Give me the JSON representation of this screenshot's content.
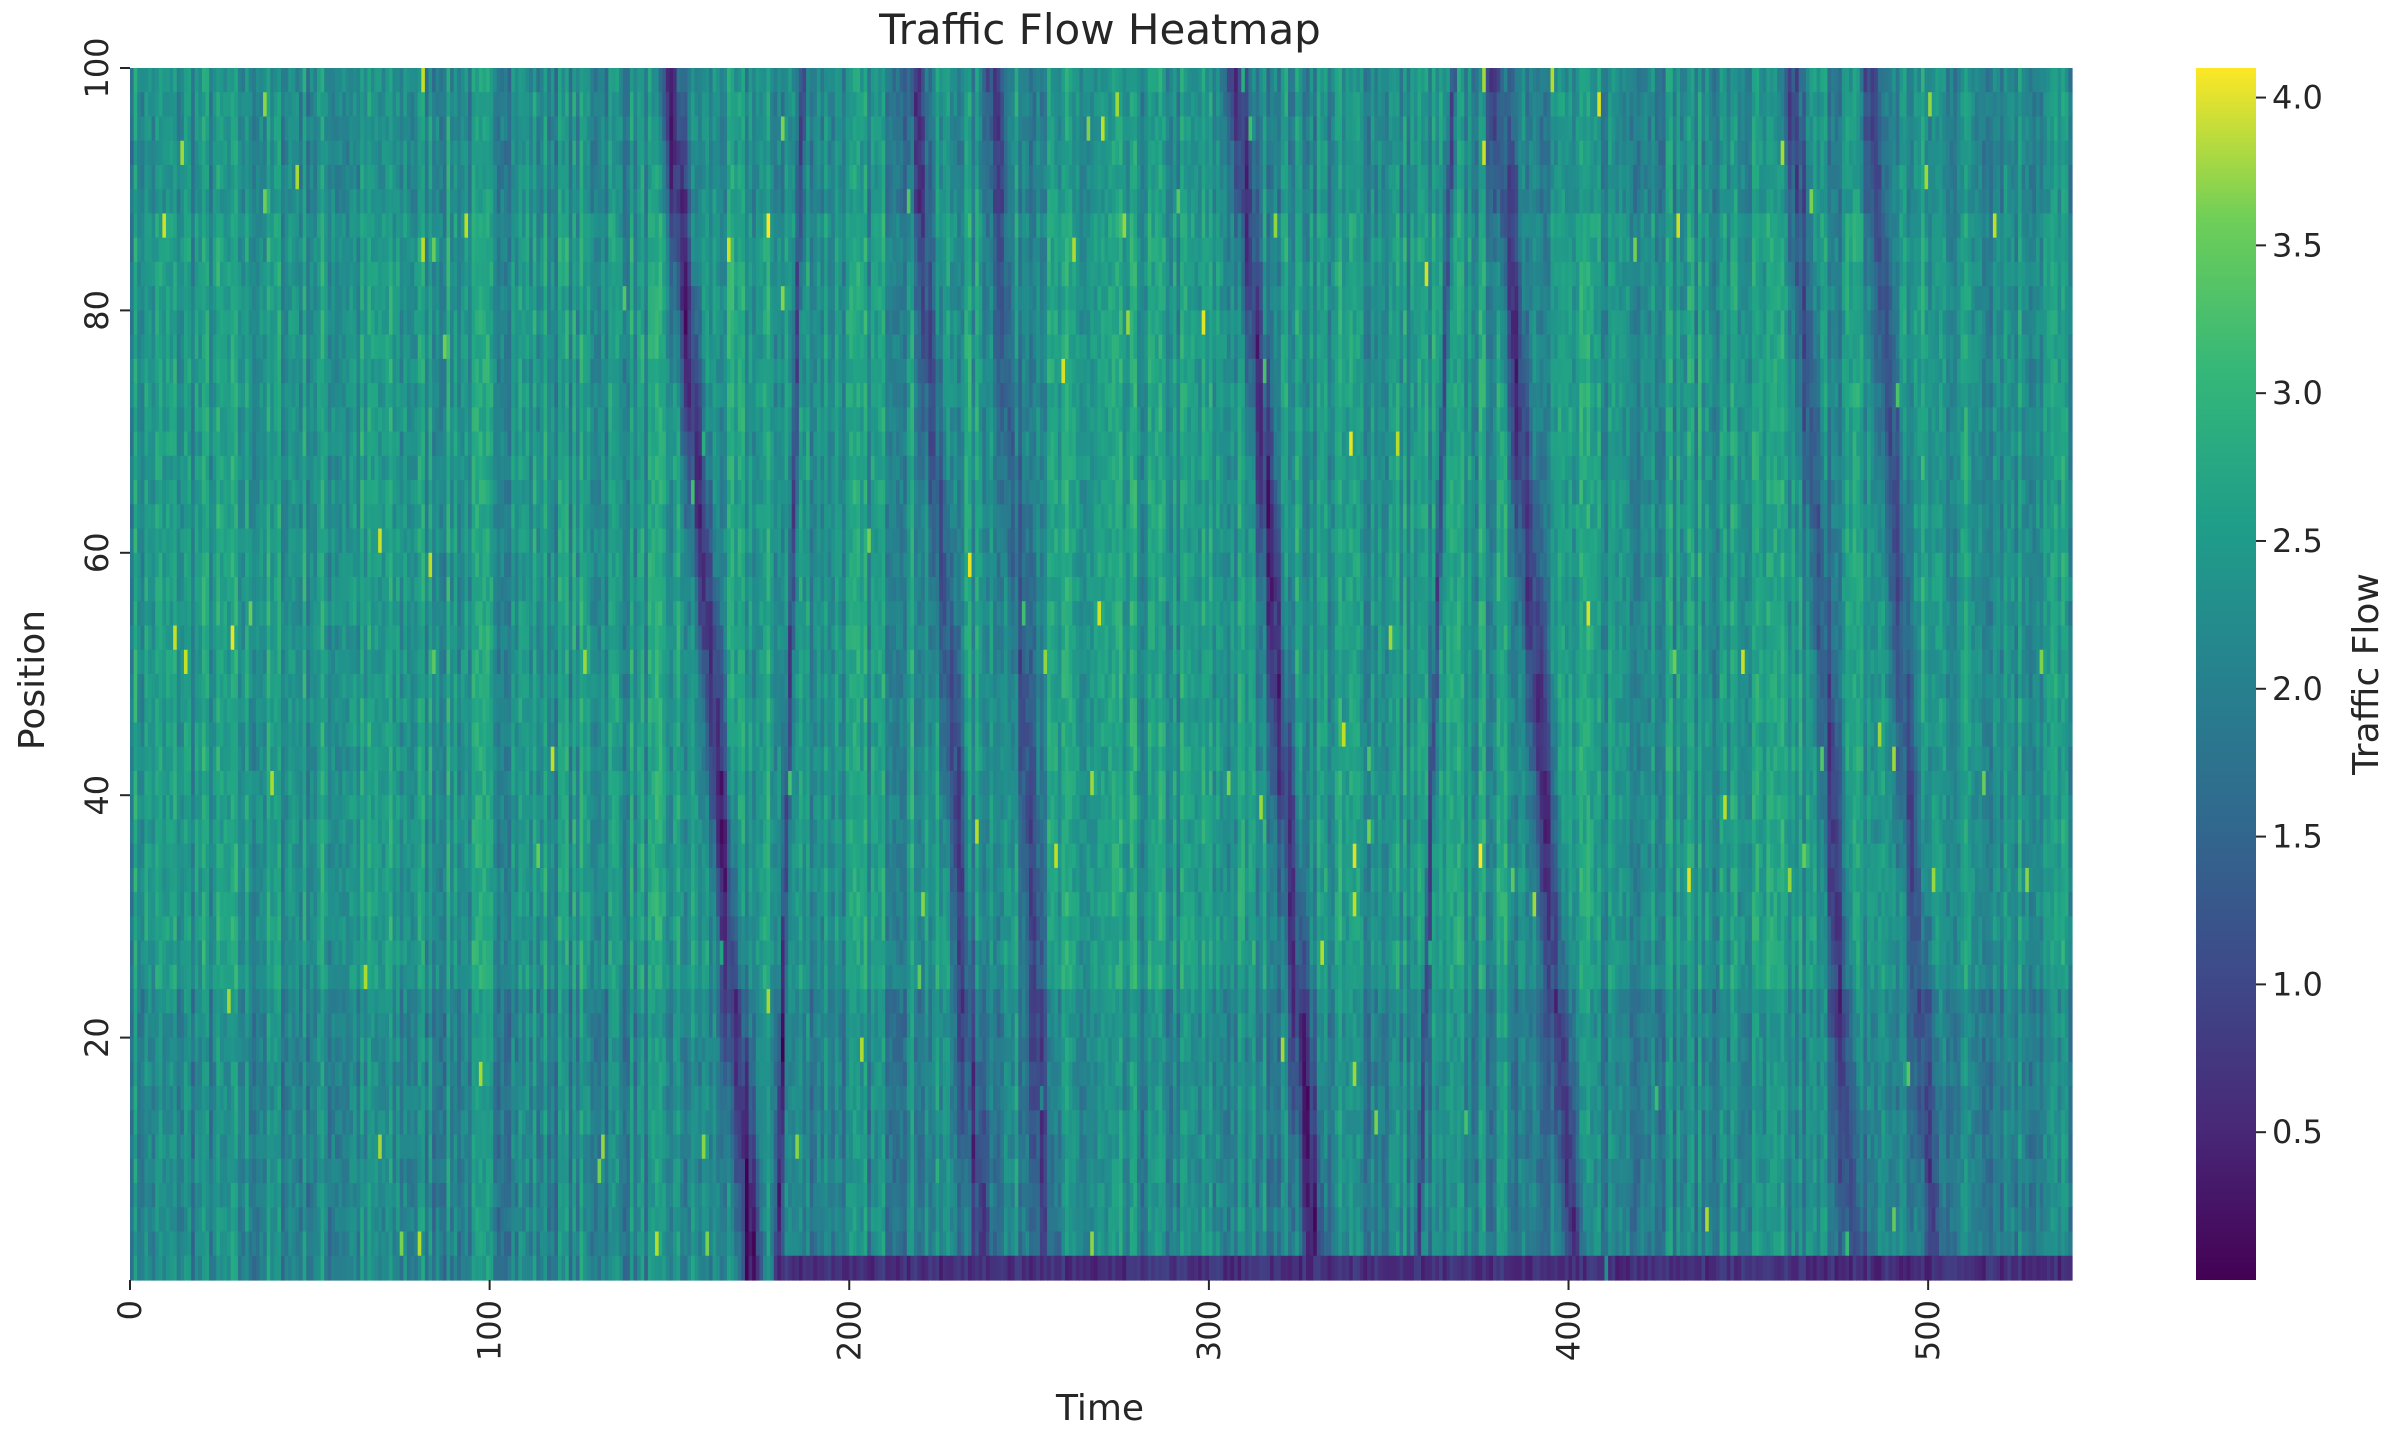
{
  "chart_data": {
    "type": "heatmap",
    "title": "Traffic Flow Heatmap",
    "xlabel": "Time",
    "ylabel": "Position",
    "colorbar_label": "Traffic Flow",
    "colormap": "viridis",
    "xlim": [
      0,
      540
    ],
    "ylim": [
      0,
      100
    ],
    "value_range": [
      0.0,
      4.1
    ],
    "x_ticks": [
      0,
      100,
      200,
      300,
      400,
      500
    ],
    "x_tick_labels": [
      "0",
      "100",
      "200",
      "300",
      "400",
      "500"
    ],
    "y_ticks": [
      20,
      40,
      60,
      80,
      100
    ],
    "y_tick_labels": [
      "20",
      "40",
      "60",
      "80",
      "100"
    ],
    "colorbar_ticks": [
      0.5,
      1.0,
      1.5,
      2.0,
      2.5,
      3.0,
      3.5,
      4.0
    ],
    "colorbar_tick_labels": [
      "0.5",
      "1.0",
      "1.5",
      "2.0",
      "2.5",
      "3.0",
      "3.5",
      "4.0"
    ],
    "base_flow": 2.15,
    "jam_waves": [
      {
        "t_top": 150,
        "t_bottom": 173,
        "depth": 1.6
      },
      {
        "t_top": 218,
        "t_bottom": 237,
        "depth": 1.1
      },
      {
        "t_top": 240,
        "t_bottom": 256,
        "depth": 0.9
      },
      {
        "t_top": 308,
        "t_bottom": 330,
        "depth": 1.4
      },
      {
        "t_top": 380,
        "t_bottom": 402,
        "depth": 1.3
      },
      {
        "t_top": 462,
        "t_bottom": 480,
        "depth": 1.1
      },
      {
        "t_top": 484,
        "t_bottom": 502,
        "depth": 1.1
      }
    ],
    "discontinuities": [
      {
        "t_top": 187,
        "t_bottom": 180,
        "depth": 1.4
      },
      {
        "t_top": 368,
        "t_bottom": 358,
        "depth": 1.4
      }
    ],
    "bottom_band": {
      "t_start": 180,
      "t_end": 540,
      "position_max": 1,
      "value": 0.3
    }
  }
}
